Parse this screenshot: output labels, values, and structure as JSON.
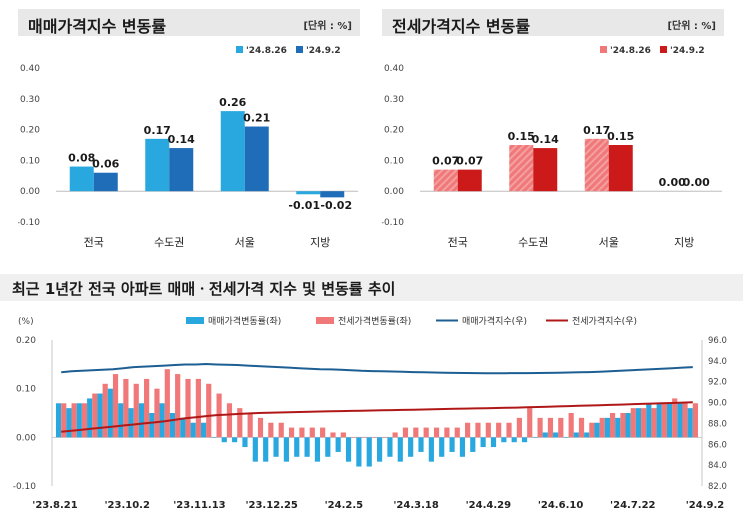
{
  "left_panel": {
    "title": "매매가격지수 변동률",
    "unit": "[단위 : %]"
  },
  "right_panel": {
    "title": "전세가격지수 변동률",
    "unit": "[단위 : %]"
  },
  "bottom_panel": {
    "title": "최근 1년간 전국 아파트 매매ㆍ전세가격 지수 및 변동률 추이"
  },
  "colors": {
    "sale_prev": "#29a8e0",
    "sale_curr": "#1f6db8",
    "jeonse_prev": "#f07878",
    "jeonse_curr": "#cc1a1a",
    "sale_index_line": "#1d5f93",
    "jeonse_index_line": "#b01818"
  },
  "chart_data": [
    {
      "type": "bar",
      "title": "매매가격지수 변동률",
      "categories": [
        "전국",
        "수도권",
        "서울",
        "지방"
      ],
      "series": [
        {
          "name": "'24.8.26",
          "values": [
            0.08,
            0.17,
            0.26,
            -0.01
          ]
        },
        {
          "name": "'24.9.2",
          "values": [
            0.06,
            0.14,
            0.21,
            -0.02
          ]
        }
      ],
      "data_labels": [
        [
          "0.08",
          "0.17",
          "0.26",
          "-0.01"
        ],
        [
          "0.06",
          "0.14",
          "0.21",
          "-0.02"
        ]
      ],
      "yticks": [
        "0.40",
        "0.30",
        "0.20",
        "0.10",
        "0.00",
        "-0.10"
      ],
      "ylim": [
        -0.1,
        0.4
      ],
      "legend": "top-right",
      "grid": false
    },
    {
      "type": "bar",
      "title": "전세가격지수 변동률",
      "categories": [
        "전국",
        "수도권",
        "서울",
        "지방"
      ],
      "series": [
        {
          "name": "'24.8.26",
          "values": [
            0.07,
            0.15,
            0.17,
            0.0
          ]
        },
        {
          "name": "'24.9.2",
          "values": [
            0.07,
            0.14,
            0.15,
            0.0
          ]
        }
      ],
      "data_labels": [
        [
          "0.07",
          "0.15",
          "0.17",
          "0.00"
        ],
        [
          "0.07",
          "0.14",
          "0.15",
          "0.00"
        ]
      ],
      "yticks": [
        "0.40",
        "0.30",
        "0.20",
        "0.10",
        "0.00",
        "-0.10"
      ],
      "ylim": [
        -0.1,
        0.4
      ],
      "legend": "top-right",
      "grid": false
    },
    {
      "type": "bar",
      "title": "최근 1년간 전국 아파트 매매ㆍ전세가격 지수 및 변동률 추이",
      "ylabel_left": "(%)",
      "xticks": [
        "'23.8.21",
        "'23.10.2",
        "'23.11.13",
        "'23.12.25",
        "'24.2.5",
        "'24.3.18",
        "'24.4.29",
        "'24.6.10",
        "'24.7.22",
        "'24.9.2"
      ],
      "yticks_left": [
        "0.20",
        "0.10",
        "0.00",
        "-0.10"
      ],
      "yticks_right": [
        "96.0",
        "94.0",
        "92.0",
        "90.0",
        "88.0",
        "86.0",
        "84.0",
        "82.0"
      ],
      "ylim_left": [
        -0.1,
        0.2
      ],
      "ylim_right": [
        82.0,
        96.0
      ],
      "legend": "top",
      "series": [
        {
          "name": "매매가격변동률(좌)",
          "axis": "left",
          "kind": "bar",
          "values": [
            0.07,
            0.06,
            0.07,
            0.08,
            0.09,
            0.1,
            0.07,
            0.06,
            0.07,
            0.05,
            0.07,
            0.05,
            0.04,
            0.03,
            0.03,
            0.0,
            -0.01,
            -0.01,
            -0.02,
            -0.05,
            -0.05,
            -0.04,
            -0.05,
            -0.04,
            -0.04,
            -0.05,
            -0.04,
            -0.03,
            -0.05,
            -0.06,
            -0.06,
            -0.05,
            -0.04,
            -0.05,
            -0.04,
            -0.03,
            -0.05,
            -0.04,
            -0.03,
            -0.04,
            -0.03,
            -0.02,
            -0.02,
            -0.01,
            -0.01,
            -0.01,
            0.0,
            0.01,
            0.01,
            0.0,
            0.01,
            0.01,
            0.03,
            0.04,
            0.04,
            0.05,
            0.06,
            0.07,
            0.07,
            0.07,
            0.07,
            0.06
          ]
        },
        {
          "name": "전세가격변동률(좌)",
          "axis": "left",
          "kind": "bar",
          "values": [
            0.07,
            0.07,
            0.07,
            0.09,
            0.11,
            0.13,
            0.12,
            0.11,
            0.12,
            0.1,
            0.14,
            0.13,
            0.12,
            0.12,
            0.11,
            0.09,
            0.07,
            0.06,
            0.05,
            0.04,
            0.03,
            0.03,
            0.02,
            0.02,
            0.02,
            0.02,
            0.01,
            0.01,
            0.0,
            0.0,
            0.0,
            0.0,
            0.01,
            0.02,
            0.02,
            0.02,
            0.02,
            0.02,
            0.02,
            0.03,
            0.03,
            0.03,
            0.03,
            0.03,
            0.04,
            0.06,
            0.04,
            0.04,
            0.04,
            0.05,
            0.04,
            0.03,
            0.04,
            0.05,
            0.05,
            0.06,
            0.06,
            0.06,
            0.07,
            0.08,
            0.07,
            0.07
          ]
        },
        {
          "name": "매매가격지수(우)",
          "axis": "right",
          "kind": "line",
          "values": [
            92.9,
            93.0,
            93.05,
            93.1,
            93.15,
            93.2,
            93.3,
            93.4,
            93.45,
            93.5,
            93.55,
            93.6,
            93.65,
            93.65,
            93.7,
            93.65,
            93.62,
            93.6,
            93.55,
            93.5,
            93.45,
            93.4,
            93.35,
            93.3,
            93.25,
            93.2,
            93.18,
            93.15,
            93.1,
            93.05,
            93.02,
            93.0,
            92.98,
            92.95,
            92.92,
            92.9,
            92.88,
            92.86,
            92.85,
            92.84,
            92.83,
            92.82,
            92.82,
            92.82,
            92.83,
            92.83,
            92.84,
            92.85,
            92.86,
            92.88,
            92.9,
            92.92,
            92.95,
            93.0,
            93.05,
            93.1,
            93.15,
            93.2,
            93.25,
            93.3,
            93.35,
            93.4
          ]
        },
        {
          "name": "전세가격지수(우)",
          "axis": "right",
          "kind": "line",
          "values": [
            87.2,
            87.3,
            87.4,
            87.5,
            87.6,
            87.7,
            87.8,
            87.9,
            88.0,
            88.1,
            88.2,
            88.35,
            88.5,
            88.6,
            88.7,
            88.8,
            88.85,
            88.9,
            88.95,
            89.0,
            89.02,
            89.05,
            89.08,
            89.1,
            89.12,
            89.14,
            89.16,
            89.18,
            89.2,
            89.22,
            89.24,
            89.26,
            89.28,
            89.3,
            89.32,
            89.34,
            89.36,
            89.38,
            89.4,
            89.42,
            89.44,
            89.46,
            89.48,
            89.5,
            89.52,
            89.55,
            89.58,
            89.6,
            89.63,
            89.66,
            89.69,
            89.72,
            89.75,
            89.78,
            89.81,
            89.84,
            89.87,
            89.9,
            89.93,
            89.96,
            90.0,
            90.03
          ]
        }
      ]
    }
  ]
}
